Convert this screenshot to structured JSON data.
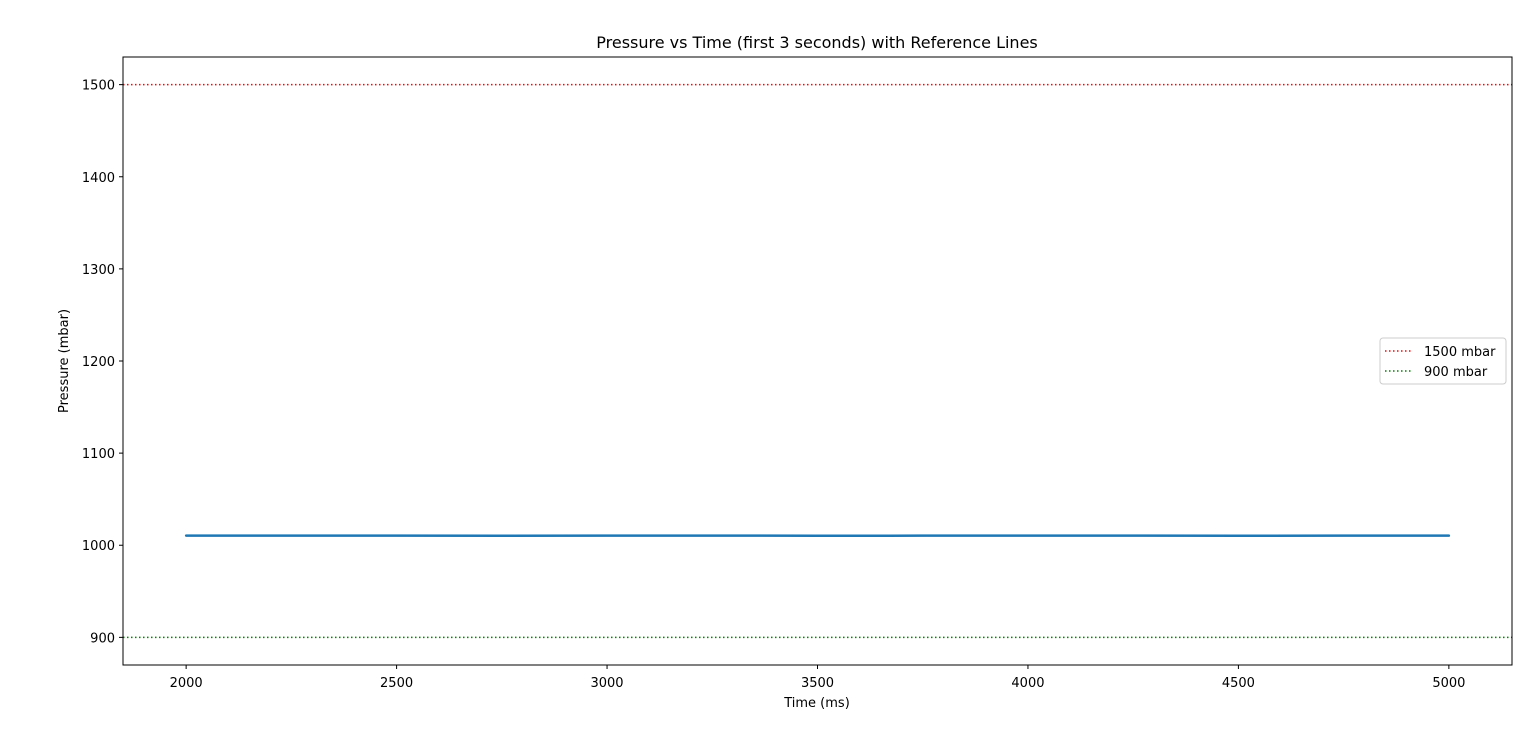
{
  "chart_data": {
    "type": "line",
    "title": "Pressure vs Time (first 3 seconds) with Reference Lines",
    "xlabel": "Time (ms)",
    "ylabel": "Pressure (mbar)",
    "xlim": [
      1850,
      5150
    ],
    "ylim": [
      870,
      1530
    ],
    "xticks": [
      2000,
      2500,
      3000,
      3500,
      4000,
      4500,
      5000
    ],
    "yticks": [
      900,
      1000,
      1100,
      1200,
      1300,
      1400,
      1500
    ],
    "grid": false,
    "legend_position": "center-right",
    "series": [
      {
        "color": "#1f77b4",
        "x": [
          2000,
          2250,
          2500,
          2750,
          3000,
          3250,
          3500,
          3750,
          4000,
          4250,
          4500,
          4750,
          5000
        ],
        "y": [
          1010.5,
          1010.4,
          1010.5,
          1010.3,
          1010.4,
          1010.5,
          1010.3,
          1010.4,
          1010.5,
          1010.4,
          1010.3,
          1010.4,
          1010.4
        ]
      }
    ],
    "reference_lines": [
      {
        "name": "1500 mbar",
        "y": 1500,
        "color": "#ff0000",
        "style": "dotted"
      },
      {
        "name": "900 mbar",
        "y": 900,
        "color": "#008000",
        "style": "dotted"
      }
    ]
  }
}
